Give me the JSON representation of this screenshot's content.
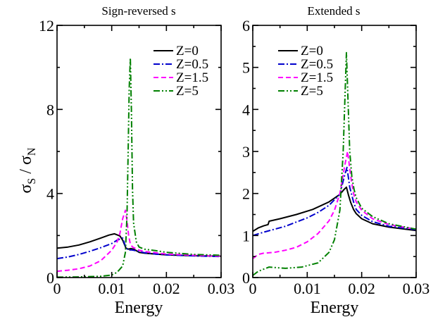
{
  "figure": {
    "ylabel_main": "σ",
    "ylabel_sub_s": "S",
    "ylabel_slash": " / ",
    "ylabel_sub_n": "N"
  },
  "chart_data": [
    {
      "type": "line",
      "title": "Sign-reversed s",
      "xlabel": "Energy",
      "ylabel": "σS / σN",
      "xlim": [
        0,
        0.03
      ],
      "ylim": [
        0,
        12
      ],
      "xticks": [
        0,
        0.01,
        0.02,
        0.03
      ],
      "xtick_labels": [
        "0",
        "0.01",
        "0.02",
        "0.03"
      ],
      "yticks": [
        0,
        4,
        8,
        12
      ],
      "ytick_labels": [
        "0",
        "4",
        "8",
        "12"
      ],
      "grid": false,
      "legend_position": "top-right",
      "series": [
        {
          "name": "Z=0",
          "color": "#000000",
          "dash": "solid",
          "x": [
            0,
            0.002,
            0.004,
            0.006,
            0.008,
            0.0095,
            0.0105,
            0.0115,
            0.012,
            0.0126,
            0.013,
            0.0135,
            0.014,
            0.0145,
            0.015,
            0.016,
            0.018,
            0.02,
            0.025,
            0.03
          ],
          "y": [
            1.4,
            1.45,
            1.55,
            1.7,
            1.88,
            2.02,
            2.08,
            1.98,
            1.78,
            1.4,
            1.35,
            1.38,
            1.35,
            1.28,
            1.2,
            1.16,
            1.12,
            1.08,
            1.04,
            1.02
          ]
        },
        {
          "name": "Z=0.5",
          "color": "#0000cc",
          "dash": "dashdot",
          "x": [
            0,
            0.002,
            0.004,
            0.006,
            0.008,
            0.01,
            0.011,
            0.012,
            0.0125,
            0.013,
            0.0135,
            0.014,
            0.015,
            0.016,
            0.018,
            0.02,
            0.025,
            0.03
          ],
          "y": [
            0.9,
            0.98,
            1.1,
            1.25,
            1.42,
            1.62,
            1.78,
            1.88,
            1.5,
            1.3,
            1.32,
            1.3,
            1.24,
            1.18,
            1.12,
            1.08,
            1.03,
            1.0
          ]
        },
        {
          "name": "Z=1.5",
          "color": "#ff00ff",
          "dash": "dashed",
          "x": [
            0,
            0.002,
            0.004,
            0.006,
            0.008,
            0.01,
            0.011,
            0.0115,
            0.012,
            0.0125,
            0.0128,
            0.0131,
            0.0134,
            0.0138,
            0.0142,
            0.015,
            0.016,
            0.018,
            0.02,
            0.025,
            0.03
          ],
          "y": [
            0.3,
            0.35,
            0.42,
            0.55,
            0.8,
            1.3,
            1.7,
            2.1,
            2.8,
            3.2,
            2.7,
            2.0,
            1.6,
            1.45,
            1.4,
            1.3,
            1.24,
            1.18,
            1.12,
            1.06,
            1.02
          ]
        },
        {
          "name": "Z=5",
          "color": "#008000",
          "dash": "dashdotdot",
          "x": [
            0,
            0.004,
            0.008,
            0.01,
            0.011,
            0.012,
            0.0125,
            0.0128,
            0.013,
            0.0132,
            0.0134,
            0.0136,
            0.0138,
            0.014,
            0.0145,
            0.015,
            0.016,
            0.018,
            0.02,
            0.025,
            0.03
          ],
          "y": [
            0.02,
            0.03,
            0.06,
            0.12,
            0.25,
            0.55,
            1.2,
            3.0,
            6.0,
            9.0,
            10.45,
            8.0,
            4.2,
            2.6,
            1.7,
            1.45,
            1.35,
            1.28,
            1.2,
            1.1,
            1.06
          ]
        }
      ]
    },
    {
      "type": "line",
      "title": "Extended s",
      "xlabel": "Energy",
      "ylabel": "σS / σN",
      "xlim": [
        0,
        0.03
      ],
      "ylim": [
        0,
        6
      ],
      "xticks": [
        0,
        0.01,
        0.02,
        0.03
      ],
      "xtick_labels": [
        "0",
        "0.01",
        "0.02",
        "0.03"
      ],
      "yticks": [
        0,
        1,
        2,
        3,
        4,
        5,
        6
      ],
      "ytick_labels": [
        "0",
        "1",
        "2",
        "3",
        "4",
        "5",
        "6"
      ],
      "grid": false,
      "legend_position": "top-left",
      "series": [
        {
          "name": "Z=0",
          "color": "#000000",
          "dash": "solid",
          "x": [
            0,
            0.001,
            0.002,
            0.0028,
            0.003,
            0.005,
            0.008,
            0.011,
            0.014,
            0.016,
            0.0168,
            0.0172,
            0.0176,
            0.018,
            0.0185,
            0.019,
            0.02,
            0.022,
            0.025,
            0.03
          ],
          "y": [
            1.1,
            1.18,
            1.23,
            1.26,
            1.34,
            1.4,
            1.5,
            1.62,
            1.8,
            1.98,
            2.1,
            2.15,
            1.95,
            1.78,
            1.62,
            1.52,
            1.4,
            1.28,
            1.2,
            1.12
          ]
        },
        {
          "name": "Z=0.5",
          "color": "#0000cc",
          "dash": "dashdot",
          "x": [
            0,
            0.002,
            0.004,
            0.006,
            0.008,
            0.01,
            0.012,
            0.014,
            0.016,
            0.0168,
            0.0173,
            0.0178,
            0.0185,
            0.019,
            0.02,
            0.022,
            0.025,
            0.03
          ],
          "y": [
            1.0,
            1.08,
            1.15,
            1.22,
            1.32,
            1.42,
            1.55,
            1.72,
            1.98,
            2.4,
            2.62,
            2.15,
            1.8,
            1.62,
            1.48,
            1.33,
            1.22,
            1.14
          ]
        },
        {
          "name": "Z=1.5",
          "color": "#ff00ff",
          "dash": "dashed",
          "x": [
            0,
            0.001,
            0.002,
            0.004,
            0.006,
            0.008,
            0.01,
            0.012,
            0.014,
            0.015,
            0.016,
            0.0168,
            0.0174,
            0.018,
            0.0185,
            0.019,
            0.02,
            0.022,
            0.025,
            0.03
          ],
          "y": [
            0.45,
            0.55,
            0.58,
            0.6,
            0.65,
            0.72,
            0.85,
            1.05,
            1.35,
            1.6,
            2.0,
            2.6,
            3.0,
            2.4,
            2.0,
            1.8,
            1.6,
            1.4,
            1.26,
            1.15
          ]
        },
        {
          "name": "Z=5",
          "color": "#008000",
          "dash": "dashdotdot",
          "x": [
            0,
            0.001,
            0.002,
            0.003,
            0.006,
            0.009,
            0.012,
            0.014,
            0.015,
            0.016,
            0.0166,
            0.0172,
            0.0175,
            0.0178,
            0.0182,
            0.0186,
            0.019,
            0.02,
            0.022,
            0.025,
            0.03
          ],
          "y": [
            0.05,
            0.15,
            0.2,
            0.25,
            0.22,
            0.25,
            0.35,
            0.6,
            0.9,
            1.6,
            3.0,
            5.35,
            4.2,
            3.0,
            2.4,
            2.1,
            1.9,
            1.65,
            1.45,
            1.28,
            1.15
          ]
        }
      ]
    }
  ]
}
